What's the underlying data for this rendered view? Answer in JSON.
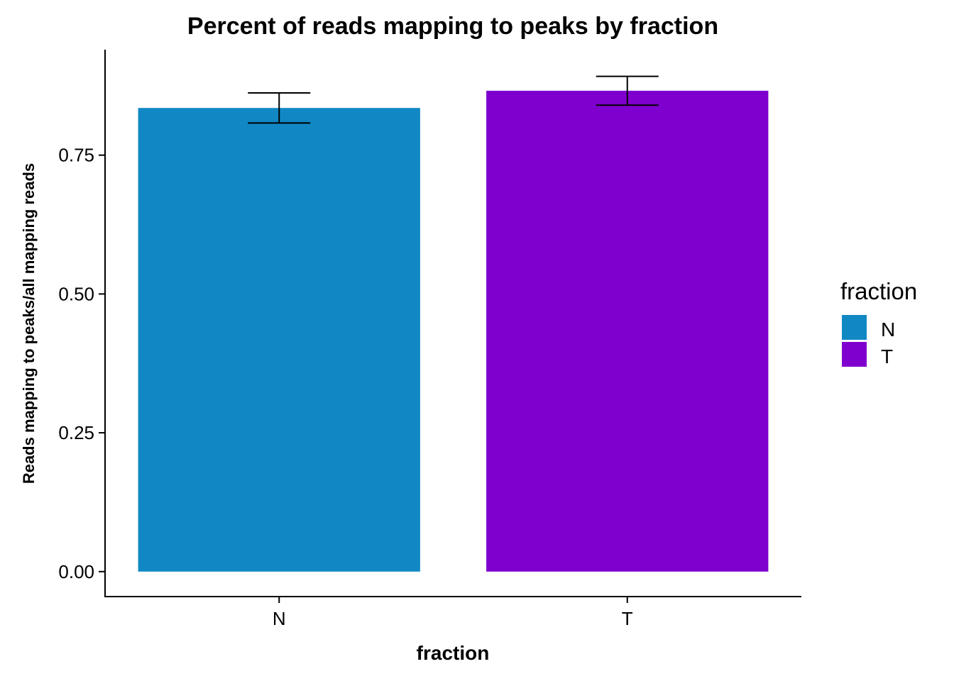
{
  "chart_data": {
    "type": "bar",
    "title": "Percent of reads mapping to peaks by fraction",
    "xlabel": "fraction",
    "ylabel": "Reads mapping to peaks/all mapping reads",
    "categories": [
      "N",
      "T"
    ],
    "values": [
      0.835,
      0.866
    ],
    "error_low": [
      0.808,
      0.84
    ],
    "error_high": [
      0.862,
      0.892
    ],
    "colors": [
      "#1188C4",
      "#7F00CE"
    ],
    "yticks": [
      0,
      0.25,
      0.5,
      0.75
    ],
    "ytick_labels": [
      "0.00",
      "0.25",
      "0.50",
      "0.75"
    ],
    "ylim": [
      -0.045,
      0.94
    ],
    "grid": false,
    "legend": {
      "title": "fraction",
      "placement": "right",
      "items": [
        "N",
        "T"
      ]
    }
  }
}
